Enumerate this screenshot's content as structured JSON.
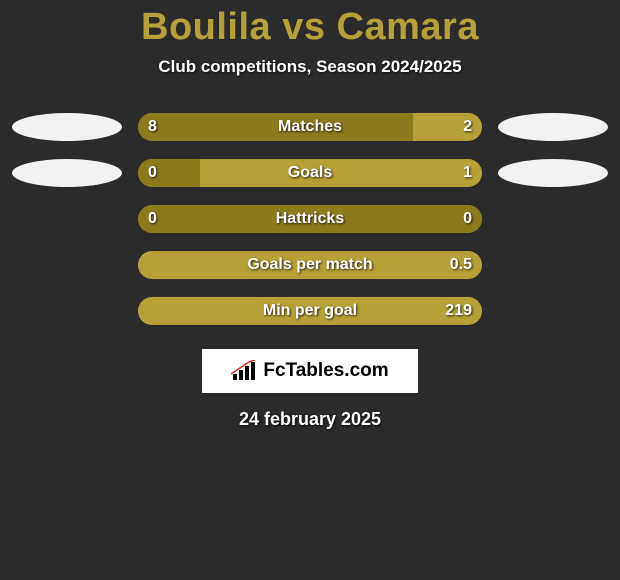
{
  "title": "Boulila vs Camara",
  "subtitle": "Club competitions, Season 2024/2025",
  "date": "24 february 2025",
  "logo_text": "FcTables.com",
  "colors": {
    "background": "#2b2b2b",
    "accent": "#b5a137",
    "bar_primary": "#8b7b1f",
    "bar_secondary": "#b5a137",
    "ellipse_left": "#f2f2f2",
    "ellipse_right": "#f2f2f2",
    "text": "#ffffff"
  },
  "bars": [
    {
      "label": "Matches",
      "left_value": "8",
      "right_value": "2",
      "left_pct": 80,
      "right_pct": 20,
      "show_ellipses": true
    },
    {
      "label": "Goals",
      "left_value": "0",
      "right_value": "1",
      "left_pct": 18,
      "right_pct": 82,
      "show_ellipses": true
    },
    {
      "label": "Hattricks",
      "left_value": "0",
      "right_value": "0",
      "left_pct": 100,
      "right_pct": 0,
      "show_ellipses": false
    },
    {
      "label": "Goals per match",
      "left_value": "",
      "right_value": "0.5",
      "left_pct": 0,
      "right_pct": 100,
      "show_ellipses": false
    },
    {
      "label": "Min per goal",
      "left_value": "",
      "right_value": "219",
      "left_pct": 0,
      "right_pct": 100,
      "show_ellipses": false
    }
  ]
}
